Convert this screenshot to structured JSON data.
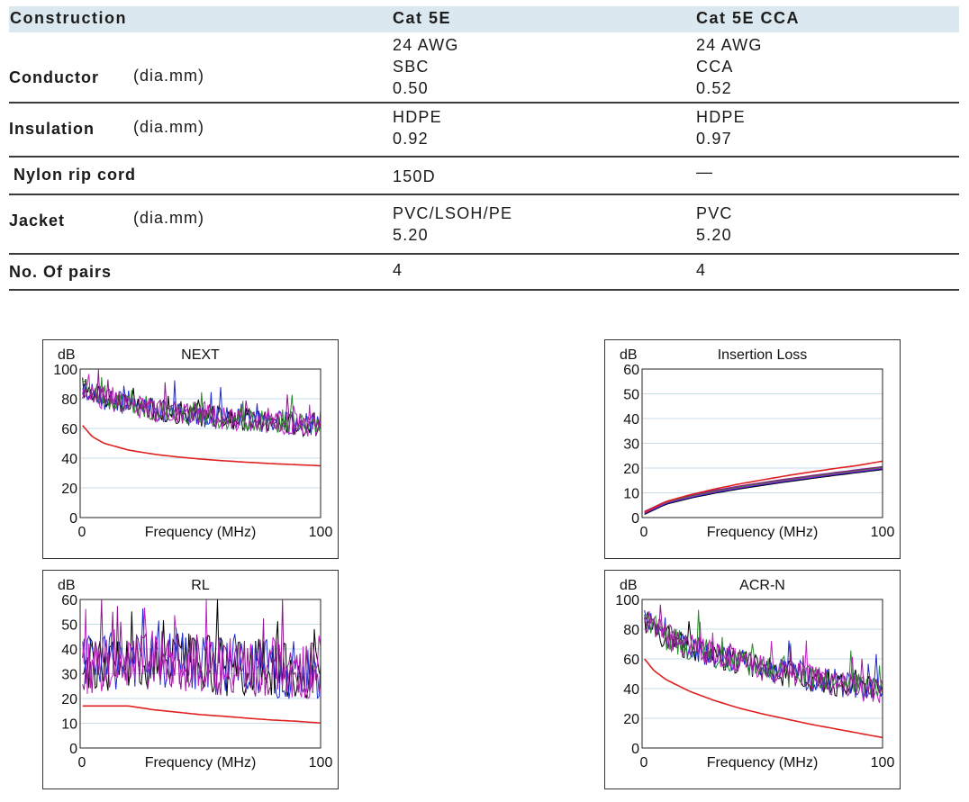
{
  "table": {
    "headers": [
      "Construction",
      "Cat 5E",
      "Cat 5E CCA"
    ],
    "rows": [
      {
        "label": "Conductor",
        "unit": "(dia.mm)",
        "cat5e": [
          "24 AWG",
          "SBC",
          "0.50"
        ],
        "cca": [
          "24 AWG",
          "CCA",
          "0.52"
        ]
      },
      {
        "label": "Insulation",
        "unit": "(dia.mm)",
        "cat5e": [
          "HDPE",
          "0.92"
        ],
        "cca": [
          "HDPE",
          "0.97"
        ]
      },
      {
        "label": "Nylon rip cord",
        "unit": "",
        "cat5e": [
          "150D"
        ],
        "cca": [
          "—"
        ]
      },
      {
        "label": "Jacket",
        "unit": "(dia.mm)",
        "cat5e": [
          "PVC/LSOH/PE",
          "5.20"
        ],
        "cca": [
          "PVC",
          "5.20"
        ]
      },
      {
        "label": "No. Of pairs",
        "unit": "",
        "cat5e": [
          "4"
        ],
        "cca": [
          "4"
        ]
      }
    ]
  },
  "chart_data": [
    {
      "type": "line",
      "title": "NEXT",
      "ylabel": "dB",
      "xlabel": "Frequency (MHz)",
      "xlim": [
        0,
        100
      ],
      "ylim": [
        0,
        100
      ],
      "yticks": [
        0,
        20,
        40,
        60,
        80,
        100
      ],
      "xticks": [
        0,
        100
      ],
      "grid": true,
      "limit_line": {
        "color": "#e02020",
        "x": [
          1,
          5,
          10,
          20,
          30,
          40,
          50,
          60,
          70,
          80,
          90,
          100
        ],
        "y": [
          62,
          54.5,
          50,
          45.5,
          42.8,
          40.9,
          39.4,
          38.2,
          37.2,
          36.3,
          35.6,
          34.9
        ]
      },
      "measured": {
        "colors": [
          "#000000",
          "#1f2ad0",
          "#c21fc2",
          "#2a8a2a",
          "#8a1a8a"
        ],
        "x": [
          1,
          10,
          20,
          30,
          40,
          50,
          60,
          70,
          80,
          90,
          100
        ],
        "y": [
          88,
          80,
          76,
          73,
          71,
          69,
          67,
          66,
          64,
          63,
          62
        ],
        "spread": 8
      }
    },
    {
      "type": "line",
      "title": "Insertion Loss",
      "ylabel": "dB",
      "xlabel": "Frequency (MHz)",
      "xlim": [
        0,
        100
      ],
      "ylim": [
        0,
        60
      ],
      "yticks": [
        0,
        10,
        20,
        30,
        40,
        50,
        60
      ],
      "xticks": [
        0,
        100
      ],
      "grid": true,
      "limit_line": {
        "color": "#e02020",
        "x": [
          1,
          10,
          20,
          30,
          40,
          50,
          60,
          70,
          80,
          90,
          100
        ],
        "y": [
          2.1,
          6.5,
          9.2,
          11.5,
          13.5,
          15.2,
          16.9,
          18.4,
          19.8,
          21.1,
          22.8
        ]
      },
      "measured": {
        "colors": [
          "#000000",
          "#1f2ad0",
          "#c21fc2",
          "#2a8a2a",
          "#8a1a8a"
        ],
        "x": [
          1,
          10,
          20,
          30,
          40,
          50,
          60,
          70,
          80,
          90,
          100
        ],
        "y": [
          1.9,
          6,
          8.4,
          10.4,
          12.1,
          13.6,
          15,
          16.3,
          17.6,
          18.8,
          20
        ],
        "spread": 0.6
      }
    },
    {
      "type": "line",
      "title": "RL",
      "ylabel": "dB",
      "xlabel": "Frequency (MHz)",
      "xlim": [
        0,
        100
      ],
      "ylim": [
        0,
        60
      ],
      "yticks": [
        0,
        10,
        20,
        30,
        40,
        50,
        60
      ],
      "xticks": [
        0,
        100
      ],
      "grid": true,
      "limit_line": {
        "color": "#e02020",
        "x": [
          1,
          20,
          30,
          40,
          50,
          60,
          70,
          80,
          90,
          100
        ],
        "y": [
          17,
          17,
          15.5,
          14.5,
          13.5,
          12.8,
          12,
          11.3,
          10.8,
          10.1
        ]
      },
      "measured": {
        "colors": [
          "#000000",
          "#1f2ad0",
          "#c21fc2",
          "#8a1a8a"
        ],
        "x": [
          1,
          20,
          40,
          60,
          80,
          100
        ],
        "y": [
          33,
          36,
          35,
          33,
          32,
          31
        ],
        "spread": 12
      }
    },
    {
      "type": "line",
      "title": "ACR-N",
      "ylabel": "dB",
      "xlabel": "Frequency (MHz)",
      "xlim": [
        0,
        100
      ],
      "ylim": [
        0,
        100
      ],
      "yticks": [
        0,
        20,
        40,
        60,
        80,
        100
      ],
      "xticks": [
        0,
        100
      ],
      "grid": true,
      "limit_line": {
        "color": "#e02020",
        "x": [
          1,
          5,
          10,
          20,
          30,
          40,
          50,
          60,
          70,
          80,
          90,
          100
        ],
        "y": [
          60,
          52,
          46,
          38,
          32,
          27,
          23,
          19.5,
          16,
          13,
          10,
          7
        ]
      },
      "measured": {
        "colors": [
          "#000000",
          "#1f2ad0",
          "#c21fc2",
          "#2a8a2a",
          "#8a1a8a"
        ],
        "x": [
          1,
          10,
          20,
          30,
          40,
          50,
          60,
          70,
          80,
          90,
          100
        ],
        "y": [
          86,
          75,
          68,
          63,
          58,
          54,
          50,
          47,
          44,
          41,
          38
        ],
        "spread": 9
      }
    }
  ]
}
